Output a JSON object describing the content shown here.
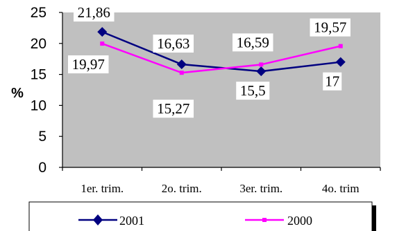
{
  "chart_data": {
    "type": "line",
    "title": "",
    "xlabel": "",
    "ylabel": "%",
    "ylim": [
      0,
      25
    ],
    "yticks": [
      "0",
      "5",
      "10",
      "15",
      "20",
      "25"
    ],
    "grid": false,
    "plot_background": "#c0c0c0",
    "legend_position": "bottom",
    "categories": [
      "1er. trim.",
      "2o. trim.",
      "3er. trim.",
      "4o. trim"
    ],
    "series": [
      {
        "name": "2001",
        "values": [
          21.86,
          16.63,
          15.5,
          17
        ],
        "labels": [
          "21,86",
          "16,63",
          "15,5",
          "17"
        ],
        "color": "#000080",
        "marker": "diamond"
      },
      {
        "name": "2000",
        "values": [
          19.97,
          15.27,
          16.59,
          19.57
        ],
        "labels": [
          "19,97",
          "15,27",
          "16,59",
          "19,57"
        ],
        "color": "#ff00ff",
        "marker": "square"
      }
    ]
  }
}
